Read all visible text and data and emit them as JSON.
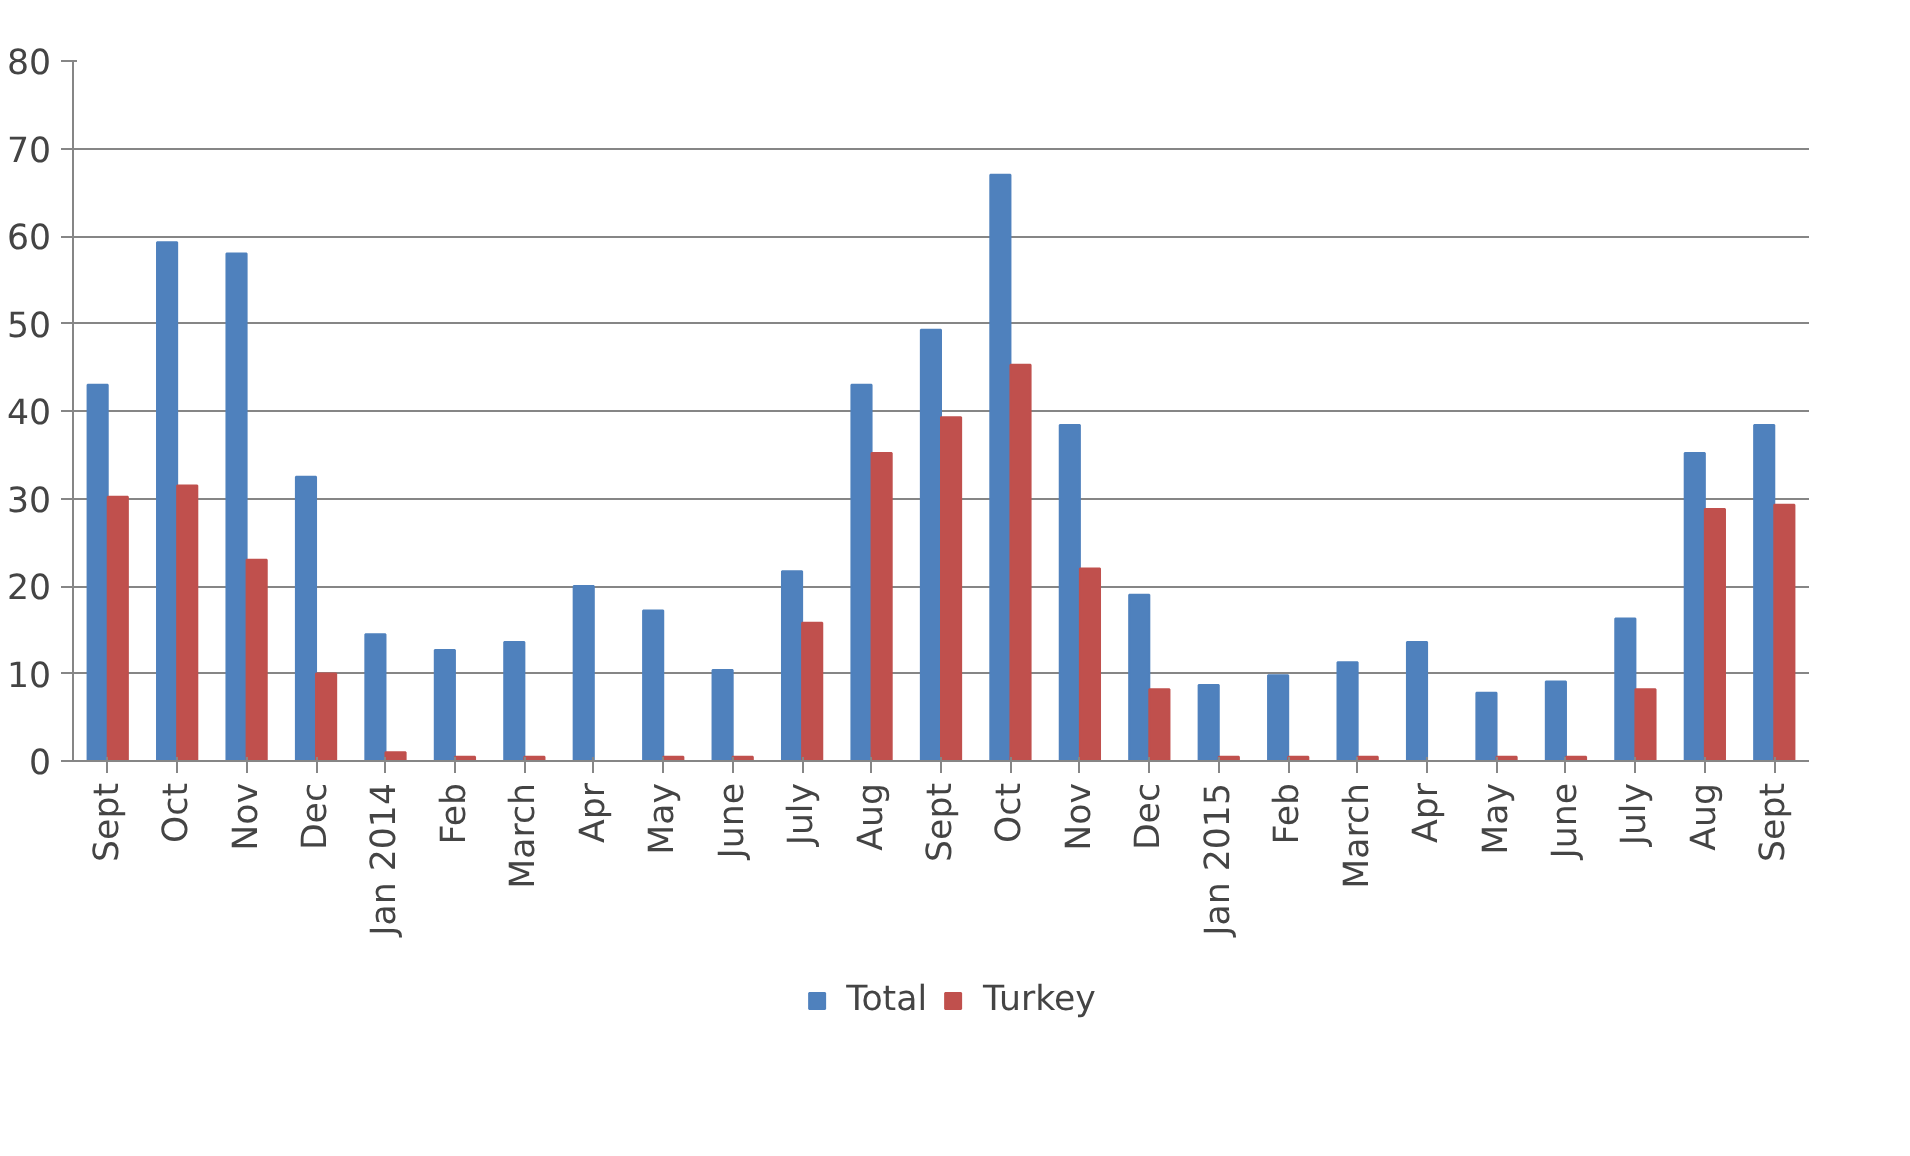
{
  "chart_data": {
    "type": "bar",
    "categories": [
      "Sept",
      "Oct",
      "Nov",
      "Dec",
      "Jan 2014",
      "Feb",
      "March",
      "Apr",
      "May",
      "June",
      "July",
      "Aug",
      "Sept",
      "Oct",
      "Nov",
      "Dec",
      "Jan 2015",
      "Feb",
      "March",
      "Apr",
      "May",
      "June",
      "July",
      "Aug",
      "Sept"
    ],
    "series": [
      {
        "name": "Total",
        "color": "#4f81bd",
        "values": [
          43,
          59.3,
          58,
          32.5,
          14.5,
          12.7,
          13.6,
          20,
          17.2,
          10.4,
          21.7,
          43,
          49.3,
          67,
          38.4,
          19,
          8.7,
          9.8,
          11.3,
          13.6,
          7.8,
          9.1,
          16.3,
          35.2,
          38.4
        ]
      },
      {
        "name": "Turkey",
        "color": "#c0504d",
        "values": [
          30.2,
          31.5,
          23,
          10,
          1,
          0.5,
          0.5,
          0,
          0.5,
          0.5,
          15.8,
          35.2,
          39.3,
          45.3,
          22,
          8.2,
          0.5,
          0.5,
          0.5,
          0,
          0.5,
          0.5,
          8.2,
          28.8,
          29.3
        ]
      }
    ],
    "ylim": [
      0,
      80
    ],
    "yticks": [
      0,
      10,
      20,
      30,
      40,
      50,
      60,
      70,
      80
    ],
    "grid": "y",
    "legend": "bottom"
  }
}
